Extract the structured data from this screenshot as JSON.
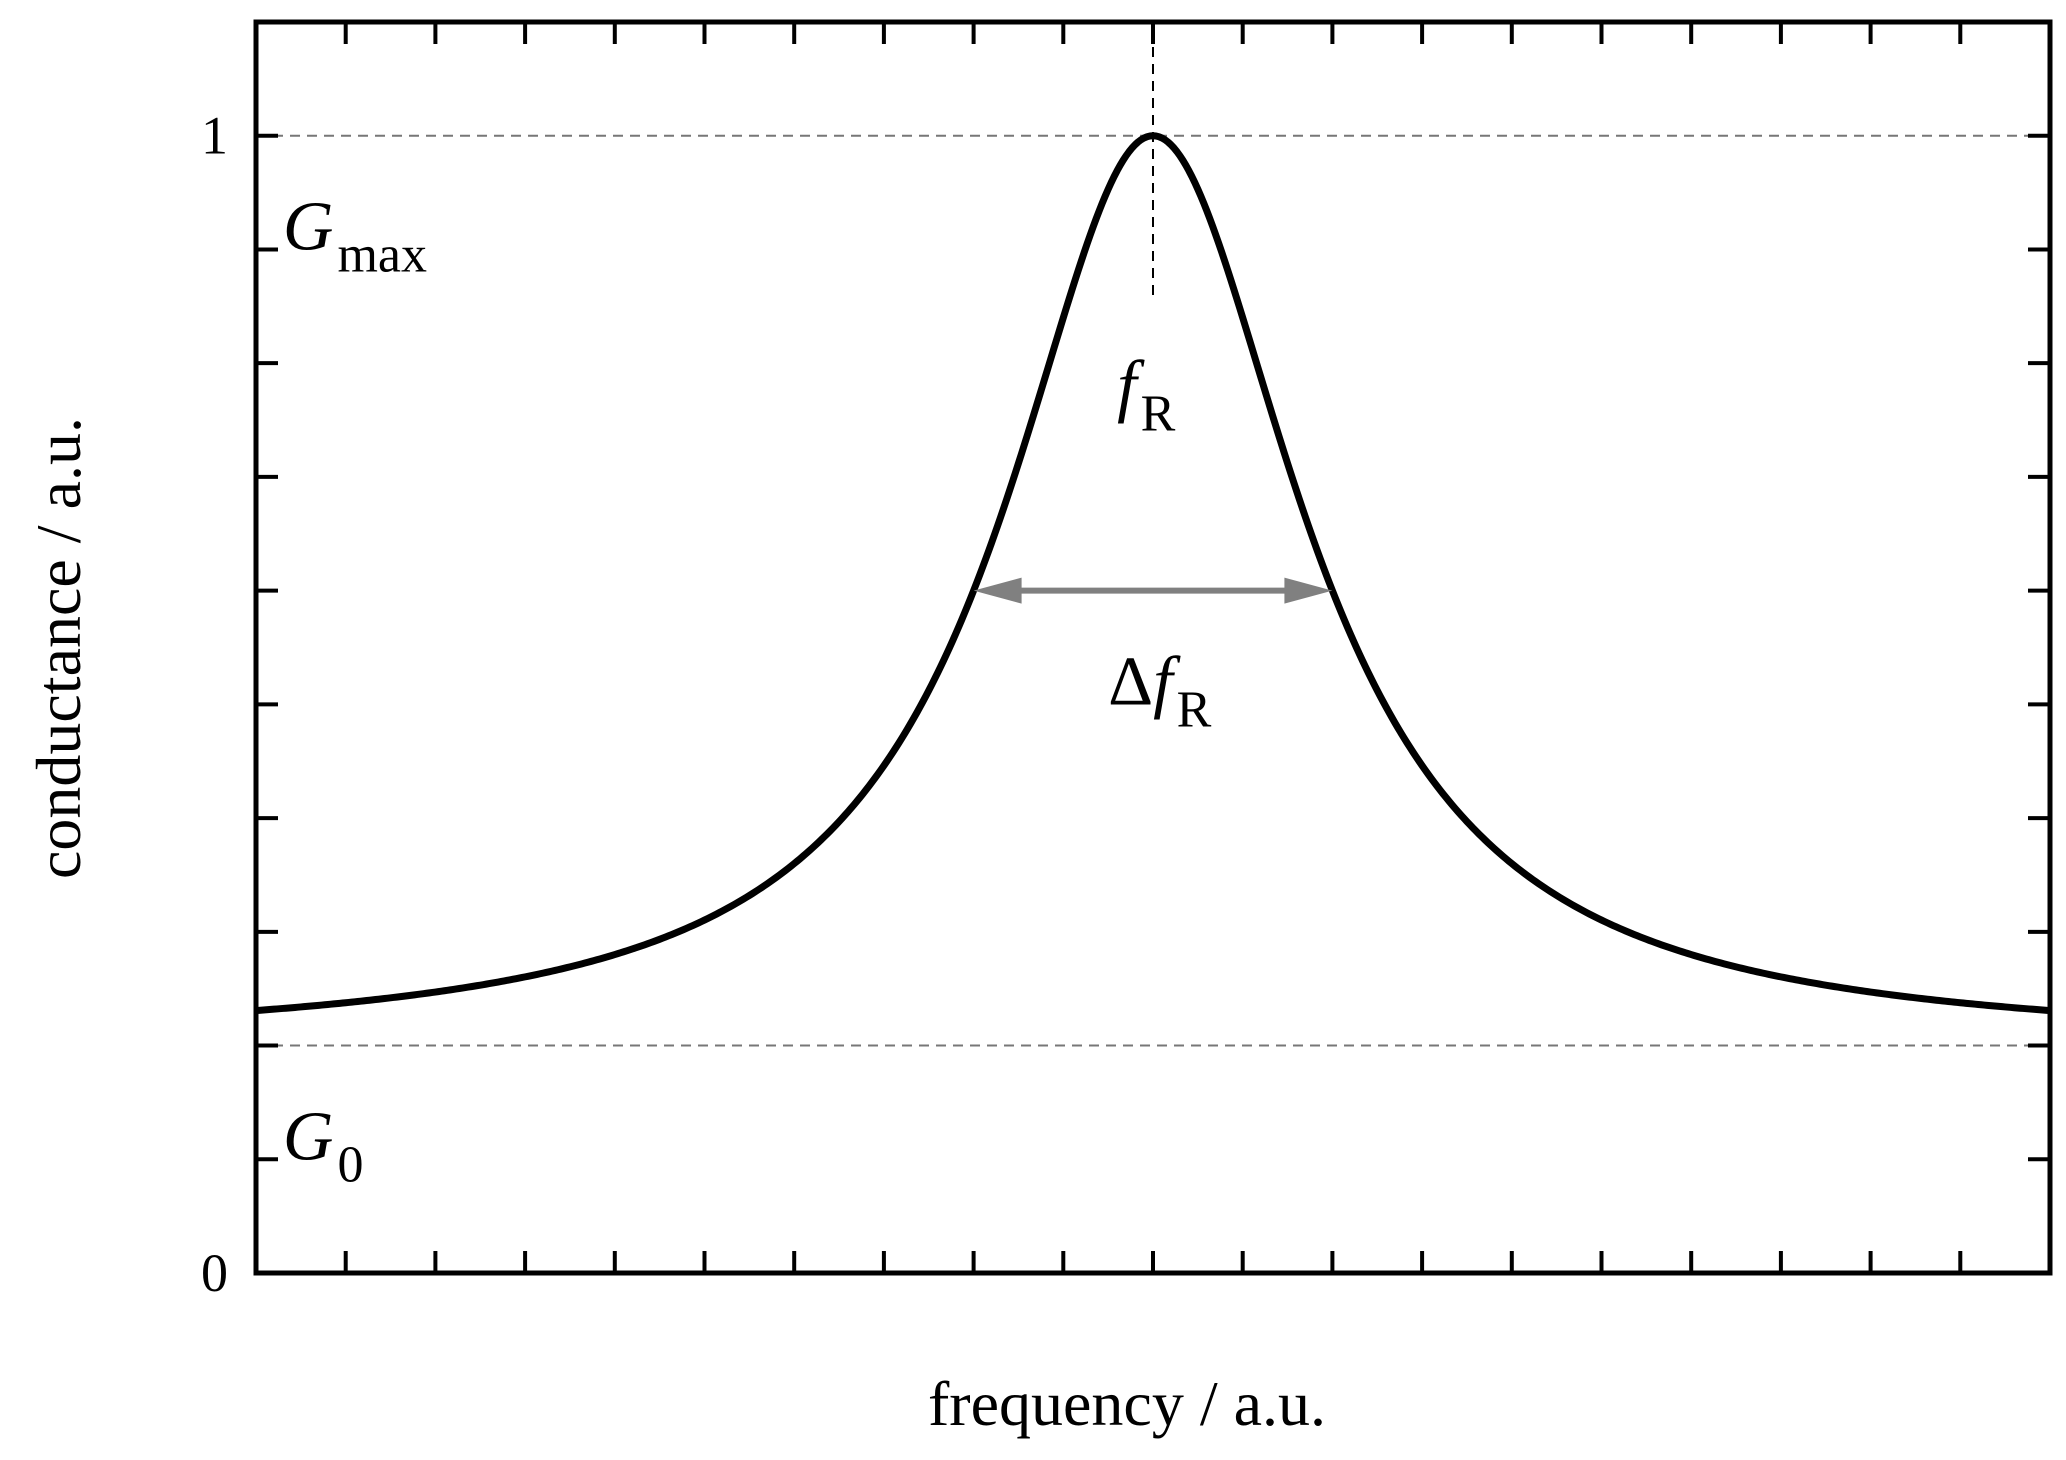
{
  "chart_data": {
    "type": "line",
    "xlabel": "frequency / a.u.",
    "ylabel": "conductance / a.u.",
    "xlim": [
      -1,
      1
    ],
    "ylim": [
      0,
      1.1
    ],
    "y_tick_labels": [
      {
        "value": 0,
        "label": "0"
      },
      {
        "value": 1,
        "label": "1"
      }
    ],
    "y_minor_step": 0.1,
    "x_tick_count": 21,
    "grid": false,
    "series": [
      {
        "curve": "lorentzian",
        "center": 0,
        "fwhm": 0.4,
        "baseline": 0.2,
        "peak": 1.0,
        "color": "#000000"
      }
    ],
    "reference_lines": [
      {
        "axis": "y",
        "value": 1.0,
        "style": "dashed",
        "color": "#777777"
      },
      {
        "axis": "y",
        "value": 0.2,
        "style": "dashed",
        "color": "#777777"
      },
      {
        "axis": "x",
        "value": 0,
        "y_from": 0.86,
        "y_to": 1.1,
        "style": "dashed",
        "color": "#000000"
      }
    ],
    "width_arrow": {
      "x_from": -0.2,
      "x_to": 0.2,
      "y": 0.6,
      "color": "#808080"
    },
    "annotations": {
      "gmax": {
        "main": "G",
        "sub": "max",
        "x": -0.97,
        "y": 0.9
      },
      "g0": {
        "main": "G",
        "sub": "0",
        "x": -0.97,
        "y": 0.1
      },
      "fr": {
        "main": "f",
        "sub": "R",
        "x": -0.04,
        "y": 0.76
      },
      "dfr": {
        "delta": "Δ",
        "main": "f",
        "sub": "R",
        "x": -0.05,
        "y": 0.5
      }
    }
  }
}
